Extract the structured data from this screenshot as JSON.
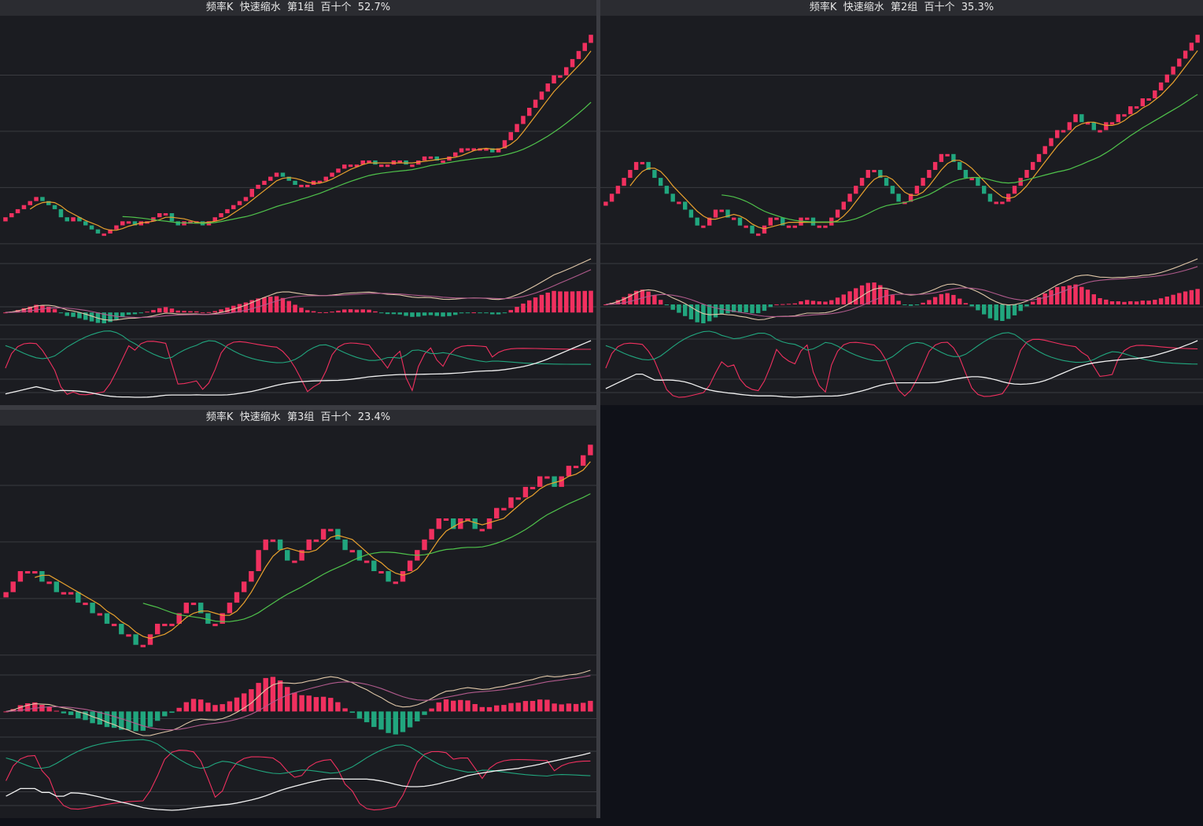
{
  "colors": {
    "up": "#f0305f",
    "down": "#21a67e",
    "ma_short": "#e8a12e",
    "ma_long": "#4fc24b",
    "grid": "#3a3b41",
    "panel_bg": "#1b1c21",
    "title_bg": "#2b2c31",
    "empty_bg": "#0f1118"
  },
  "panels": [
    {
      "title": "频率K  快速缩水  第1组  百十个  52.7%",
      "chart_data": {
        "type": "candlestick",
        "close": [
          24.5,
          25,
          25.5,
          26,
          26.5,
          27,
          26.5,
          26,
          25.5,
          24.5,
          24,
          24.5,
          24,
          23.5,
          23,
          22.5,
          22.5,
          23,
          23.5,
          24,
          24,
          23.5,
          24,
          24,
          24.5,
          25,
          25,
          24,
          23.5,
          24,
          24,
          24,
          23.5,
          24,
          24.5,
          25,
          25.5,
          26,
          26.5,
          27,
          28,
          28.5,
          29,
          29.5,
          30,
          29.5,
          29,
          28.5,
          28.5,
          28.5,
          29,
          29,
          29.5,
          30,
          30.5,
          31,
          31,
          31,
          31.5,
          31.5,
          31,
          31,
          31,
          31.5,
          31.5,
          31,
          31,
          31.5,
          32,
          32,
          31.5,
          31.5,
          32,
          32.5,
          33,
          33,
          33,
          33,
          33,
          32.5,
          33,
          34,
          35,
          36,
          37,
          38,
          39,
          40,
          41,
          42,
          42,
          43,
          44,
          45,
          46,
          47
        ]
      }
    },
    {
      "title": "频率K  快速缩水  第2组  百十个  35.3%",
      "chart_data": {
        "type": "candlestick",
        "close": [
          25,
          26,
          27,
          28,
          29,
          30,
          30,
          29,
          28,
          27,
          26,
          25,
          25,
          24,
          23,
          22,
          22,
          23,
          24,
          24,
          23,
          23,
          22,
          22,
          21,
          21,
          22,
          23,
          23,
          22,
          22,
          22,
          23,
          23,
          22,
          22,
          22,
          23,
          24,
          25,
          26,
          27,
          28,
          29,
          29,
          28,
          27,
          26,
          25,
          25,
          26,
          27,
          28,
          29,
          30,
          31,
          31,
          30,
          29,
          28,
          28,
          27,
          26,
          25,
          25,
          25,
          26,
          27,
          28,
          29,
          30,
          31,
          32,
          33,
          34,
          34,
          35,
          36,
          35,
          35,
          34,
          34,
          35,
          35,
          36,
          36,
          37,
          37,
          38,
          38,
          39,
          40,
          41,
          42,
          43,
          44,
          45,
          46
        ]
      }
    },
    {
      "title": "频率K  快速缩水  第3组  百十个  23.4%",
      "chart_data": {
        "type": "candlestick",
        "close": [
          28,
          29,
          30,
          30,
          30,
          29,
          29,
          28,
          28,
          28,
          27,
          27,
          26,
          26,
          25,
          25,
          24,
          24,
          23,
          23,
          24,
          25,
          25,
          25,
          26,
          27,
          27,
          26,
          25,
          25,
          26,
          27,
          28,
          29,
          30,
          32,
          33,
          33,
          32,
          31,
          31,
          32,
          33,
          33,
          34,
          34,
          33,
          32,
          32,
          31,
          31,
          30,
          30,
          29,
          29,
          30,
          31,
          32,
          33,
          34,
          35,
          35,
          34,
          35,
          35,
          34,
          34,
          35,
          36,
          36,
          37,
          37,
          38,
          38,
          39,
          39,
          38,
          39,
          40,
          40,
          41,
          42
        ]
      }
    }
  ]
}
